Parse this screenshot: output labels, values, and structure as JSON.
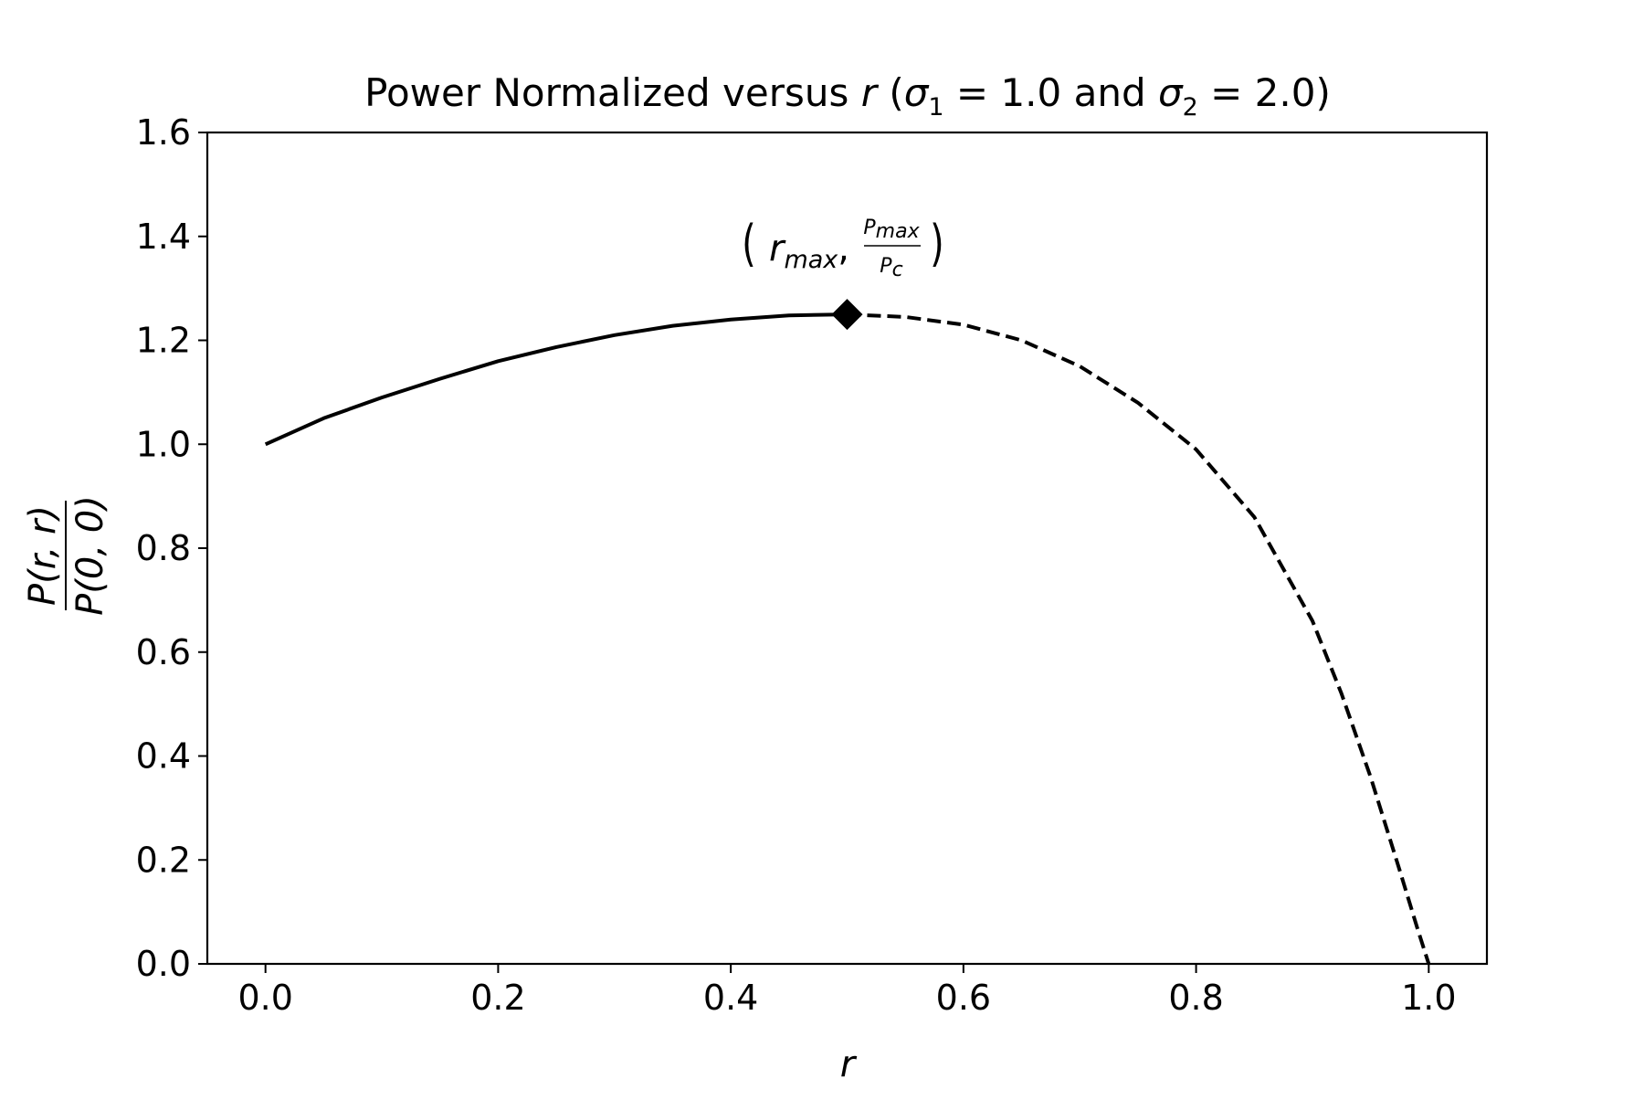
{
  "chart_data": {
    "type": "line",
    "title": {
      "prefix": "Power Normalized versus ",
      "var": "r",
      "open": " (",
      "sigma": "σ",
      "sub1": "1",
      "eq1": " = 1.0 and ",
      "sub2": "2",
      "eq2": " = 2.0)"
    },
    "xlabel": "r",
    "ylabel": {
      "numerator": "P(r, r)",
      "denominator": "P(0, 0)"
    },
    "xlim": [
      -0.05,
      1.05
    ],
    "ylim": [
      0.0,
      1.6
    ],
    "xticks": [
      "0.0",
      "0.2",
      "0.4",
      "0.6",
      "0.8",
      "1.0"
    ],
    "yticks": [
      "0.0",
      "0.2",
      "0.4",
      "0.6",
      "0.8",
      "1.0",
      "1.2",
      "1.4",
      "1.6"
    ],
    "grid": false,
    "legend": "none",
    "line_color": "#000000",
    "series": [
      {
        "style": "solid",
        "x": [
          0.0,
          0.05,
          0.1,
          0.15,
          0.2,
          0.25,
          0.3,
          0.35,
          0.4,
          0.45,
          0.5
        ],
        "y": [
          1.0,
          1.05,
          1.09,
          1.126,
          1.16,
          1.187,
          1.21,
          1.228,
          1.24,
          1.248,
          1.25
        ]
      },
      {
        "style": "dashed",
        "x": [
          0.5,
          0.55,
          0.6,
          0.65,
          0.7,
          0.75,
          0.8,
          0.85,
          0.9,
          0.925,
          0.95,
          0.975,
          0.99,
          1.0
        ],
        "y": [
          1.25,
          1.245,
          1.23,
          1.2,
          1.15,
          1.08,
          0.99,
          0.86,
          0.66,
          0.52,
          0.36,
          0.18,
          0.07,
          0.0
        ]
      }
    ],
    "marker": {
      "shape": "diamond",
      "x": 0.5,
      "y": 1.25
    },
    "annotation": {
      "x": 0.5,
      "y": 1.25,
      "lparen": "(",
      "rparen": ")",
      "r": "r",
      "r_sub": "max",
      "comma": ",",
      "num_p": "P",
      "num_sub": "max",
      "den_p": "P",
      "den_sub": "c"
    }
  }
}
